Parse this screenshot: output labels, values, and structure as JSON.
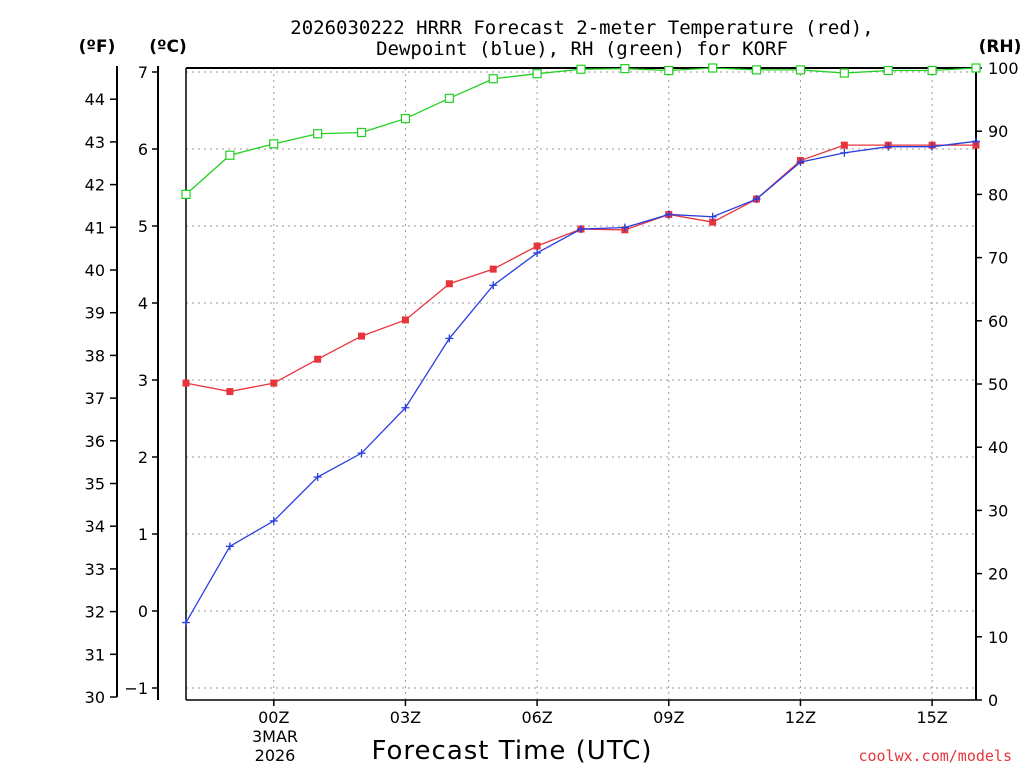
{
  "title_line1": "2026030222 HRRR Forecast 2-meter Temperature (red),",
  "title_line2": "Dewpoint (blue), RH (green) for KORF",
  "units": {
    "f": "(ºF)",
    "c": "(ºC)",
    "rh": "(RH)"
  },
  "date_label": {
    "line1": "3MAR",
    "line2": "2026"
  },
  "credit": "coolwx.com/models",
  "colors": {
    "temp": "#e8343c",
    "dew": "#2a3ee0",
    "rh": "#22d022"
  },
  "chart_data": {
    "type": "line",
    "xlabel": "Forecast Time (UTC)",
    "x": [
      -2,
      -1,
      0,
      1,
      2,
      3,
      4,
      5,
      6,
      7,
      8,
      9,
      10,
      11,
      12,
      13,
      14,
      15,
      16
    ],
    "xlim": [
      -2,
      16
    ],
    "xticks": [
      {
        "value": 0,
        "label": "00Z"
      },
      {
        "value": 3,
        "label": "03Z"
      },
      {
        "value": 6,
        "label": "06Z"
      },
      {
        "value": 9,
        "label": "09Z"
      },
      {
        "value": 12,
        "label": "12Z"
      },
      {
        "value": 15,
        "label": "15Z"
      }
    ],
    "yaxis_c": {
      "lim": [
        -1.1,
        7.05
      ],
      "ticks": [
        "-1",
        "0",
        "1",
        "2",
        "3",
        "4",
        "5",
        "6",
        "7"
      ]
    },
    "yaxis_f": {
      "lim": [
        30,
        44.6
      ],
      "ticks": [
        "30",
        "31",
        "32",
        "33",
        "34",
        "35",
        "36",
        "37",
        "38",
        "39",
        "40",
        "41",
        "42",
        "43",
        "44"
      ]
    },
    "yaxis_rh": {
      "lim": [
        0,
        100
      ],
      "ticks": [
        "0",
        "10",
        "20",
        "30",
        "40",
        "50",
        "60",
        "70",
        "80",
        "90",
        "100"
      ]
    },
    "series": [
      {
        "name": "Temperature (red)",
        "axis": "c",
        "values": [
          2.96,
          2.85,
          2.96,
          3.27,
          3.57,
          3.78,
          4.25,
          4.44,
          4.74,
          4.96,
          4.95,
          5.15,
          5.05,
          5.35,
          5.85,
          6.05,
          6.05,
          6.05,
          6.05
        ]
      },
      {
        "name": "Dewpoint (blue)",
        "axis": "c",
        "values": [
          -0.15,
          0.84,
          1.17,
          1.74,
          2.05,
          2.64,
          3.54,
          4.23,
          4.65,
          4.96,
          4.98,
          5.15,
          5.12,
          5.35,
          5.83,
          5.95,
          6.03,
          6.03,
          6.1
        ]
      },
      {
        "name": "RH (green)",
        "axis": "rh",
        "values": [
          80,
          86.2,
          88.0,
          89.6,
          89.8,
          92.0,
          95.2,
          98.3,
          99.1,
          99.8,
          99.9,
          99.6,
          100,
          99.7,
          99.7,
          99.2,
          99.6,
          99.6,
          100
        ]
      }
    ]
  }
}
